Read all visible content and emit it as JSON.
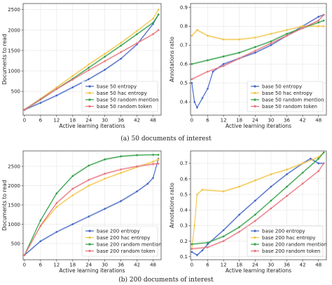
{
  "captions": [
    "(a) 50 documents of interest",
    "(b) 200 documents of interest"
  ],
  "chart_data": [
    {
      "type": "line",
      "xlabel": "Active learning iterations",
      "ylabel": "Documents to read",
      "xticks": [
        0,
        6,
        12,
        18,
        24,
        30,
        36,
        42,
        48
      ],
      "yticks": [
        500,
        1000,
        1500,
        2000,
        2500
      ],
      "xlim": [
        -0.5,
        51
      ],
      "ylim": [
        -80,
        2650
      ],
      "legend_position": "lower-right",
      "series": [
        {
          "name": "base 50 entropy",
          "color": "#4263c6",
          "points": [
            [
              0,
              50
            ],
            [
              6,
              220
            ],
            [
              12,
              400
            ],
            [
              18,
              600
            ],
            [
              24,
              800
            ],
            [
              30,
              1030
            ],
            [
              36,
              1300
            ],
            [
              42,
              1650
            ],
            [
              48,
              2150
            ],
            [
              50,
              2380
            ]
          ]
        },
        {
          "name": "base 50 hac entropy",
          "color": "#f2c444",
          "points": [
            [
              0,
              50
            ],
            [
              6,
              320
            ],
            [
              12,
              600
            ],
            [
              18,
              880
            ],
            [
              24,
              1160
            ],
            [
              30,
              1420
            ],
            [
              36,
              1690
            ],
            [
              42,
              1980
            ],
            [
              48,
              2280
            ],
            [
              50,
              2500
            ]
          ]
        },
        {
          "name": "base 50 random mention",
          "color": "#2f9e44",
          "points": [
            [
              0,
              50
            ],
            [
              6,
              300
            ],
            [
              12,
              560
            ],
            [
              18,
              810
            ],
            [
              24,
              1080
            ],
            [
              30,
              1350
            ],
            [
              36,
              1620
            ],
            [
              42,
              1900
            ],
            [
              48,
              2180
            ],
            [
              50,
              2380
            ]
          ]
        },
        {
          "name": "base 50 random token",
          "color": "#e8707a",
          "points": [
            [
              0,
              50
            ],
            [
              6,
              310
            ],
            [
              12,
              560
            ],
            [
              18,
              790
            ],
            [
              24,
              1020
            ],
            [
              30,
              1240
            ],
            [
              36,
              1460
            ],
            [
              42,
              1680
            ],
            [
              48,
              1900
            ],
            [
              50,
              2000
            ]
          ]
        }
      ]
    },
    {
      "type": "line",
      "xlabel": "Active learning iterations",
      "ylabel": "Annotations ratio",
      "xticks": [
        0,
        6,
        12,
        18,
        24,
        30,
        36,
        42,
        48
      ],
      "yticks": [
        0.4,
        0.5,
        0.6,
        0.7,
        0.8,
        0.9
      ],
      "xlim": [
        -0.5,
        51
      ],
      "ylim": [
        0.33,
        0.92
      ],
      "legend_position": "lower-right",
      "series": [
        {
          "name": "base 50 entropy",
          "color": "#4263c6",
          "points": [
            [
              0,
              0.5
            ],
            [
              1,
              0.4
            ],
            [
              2,
              0.37
            ],
            [
              4,
              0.42
            ],
            [
              6,
              0.47
            ],
            [
              8,
              0.56
            ],
            [
              12,
              0.6
            ],
            [
              18,
              0.63
            ],
            [
              24,
              0.66
            ],
            [
              30,
              0.7
            ],
            [
              36,
              0.75
            ],
            [
              42,
              0.8
            ],
            [
              48,
              0.85
            ],
            [
              50,
              0.86
            ]
          ]
        },
        {
          "name": "base 50 hac entropy",
          "color": "#f2c444",
          "points": [
            [
              0,
              0.75
            ],
            [
              2,
              0.78
            ],
            [
              6,
              0.75
            ],
            [
              12,
              0.73
            ],
            [
              18,
              0.73
            ],
            [
              24,
              0.74
            ],
            [
              30,
              0.76
            ],
            [
              36,
              0.78
            ],
            [
              42,
              0.8
            ],
            [
              48,
              0.8
            ],
            [
              50,
              0.8
            ]
          ]
        },
        {
          "name": "base 50 random mention",
          "color": "#2f9e44",
          "points": [
            [
              0,
              0.6
            ],
            [
              6,
              0.62
            ],
            [
              12,
              0.64
            ],
            [
              18,
              0.66
            ],
            [
              24,
              0.69
            ],
            [
              30,
              0.72
            ],
            [
              36,
              0.76
            ],
            [
              42,
              0.79
            ],
            [
              48,
              0.82
            ],
            [
              50,
              0.83
            ]
          ]
        },
        {
          "name": "base 50 random token",
          "color": "#e8707a",
          "points": [
            [
              0,
              0.52
            ],
            [
              6,
              0.56
            ],
            [
              12,
              0.59
            ],
            [
              18,
              0.63
            ],
            [
              24,
              0.67
            ],
            [
              30,
              0.71
            ],
            [
              36,
              0.75
            ],
            [
              42,
              0.79
            ],
            [
              48,
              0.83
            ],
            [
              50,
              0.86
            ]
          ]
        }
      ]
    },
    {
      "type": "line",
      "xlabel": "Active learning iterations",
      "ylabel": "Documents to read",
      "xticks": [
        0,
        6,
        12,
        18,
        24,
        30,
        36,
        42,
        48
      ],
      "yticks": [
        500,
        1000,
        1500,
        2000,
        2500
      ],
      "xlim": [
        -0.5,
        51
      ],
      "ylim": [
        80,
        2900
      ],
      "legend_position": "lower-right",
      "series": [
        {
          "name": "base 200 entropy",
          "color": "#4263c6",
          "points": [
            [
              0,
              200
            ],
            [
              6,
              560
            ],
            [
              12,
              800
            ],
            [
              18,
              1000
            ],
            [
              24,
              1200
            ],
            [
              30,
              1400
            ],
            [
              36,
              1600
            ],
            [
              42,
              1850
            ],
            [
              46,
              2050
            ],
            [
              48,
              2200
            ],
            [
              50,
              2700
            ]
          ]
        },
        {
          "name": "base 200 hac entropy",
          "color": "#f2c444",
          "points": [
            [
              0,
              200
            ],
            [
              6,
              950
            ],
            [
              12,
              1450
            ],
            [
              18,
              1750
            ],
            [
              24,
              2000
            ],
            [
              30,
              2180
            ],
            [
              36,
              2330
            ],
            [
              42,
              2480
            ],
            [
              48,
              2620
            ],
            [
              50,
              2680
            ]
          ]
        },
        {
          "name": "base 200 random mention",
          "color": "#2f9e44",
          "points": [
            [
              0,
              200
            ],
            [
              6,
              1100
            ],
            [
              12,
              1800
            ],
            [
              18,
              2250
            ],
            [
              24,
              2520
            ],
            [
              30,
              2680
            ],
            [
              36,
              2760
            ],
            [
              42,
              2790
            ],
            [
              48,
              2800
            ],
            [
              50,
              2800
            ]
          ]
        },
        {
          "name": "base 200 random token",
          "color": "#e8707a",
          "points": [
            [
              0,
              200
            ],
            [
              6,
              960
            ],
            [
              12,
              1550
            ],
            [
              18,
              1920
            ],
            [
              24,
              2150
            ],
            [
              30,
              2310
            ],
            [
              36,
              2420
            ],
            [
              42,
              2500
            ],
            [
              48,
              2560
            ],
            [
              50,
              2570
            ]
          ]
        }
      ]
    },
    {
      "type": "line",
      "xlabel": "Active learning iterations",
      "ylabel": "Annotations ratio",
      "xticks": [
        0,
        6,
        12,
        18,
        24,
        30,
        36,
        42,
        48
      ],
      "yticks": [
        0.1,
        0.2,
        0.3,
        0.4,
        0.5,
        0.6,
        0.7
      ],
      "xlim": [
        -0.5,
        51
      ],
      "ylim": [
        0.08,
        0.78
      ],
      "legend_position": "lower-right",
      "series": [
        {
          "name": "base 200 entropy",
          "color": "#4263c6",
          "points": [
            [
              0,
              0.13
            ],
            [
              2,
              0.11
            ],
            [
              4,
              0.14
            ],
            [
              6,
              0.18
            ],
            [
              12,
              0.27
            ],
            [
              18,
              0.37
            ],
            [
              24,
              0.46
            ],
            [
              30,
              0.55
            ],
            [
              36,
              0.63
            ],
            [
              42,
              0.7
            ],
            [
              45,
              0.73
            ],
            [
              48,
              0.7
            ],
            [
              50,
              0.7
            ]
          ]
        },
        {
          "name": "base 200 hac entropy",
          "color": "#f2c444",
          "points": [
            [
              0,
              0.15
            ],
            [
              1,
              0.3
            ],
            [
              2,
              0.5
            ],
            [
              4,
              0.53
            ],
            [
              12,
              0.52
            ],
            [
              18,
              0.55
            ],
            [
              24,
              0.59
            ],
            [
              30,
              0.63
            ],
            [
              36,
              0.66
            ],
            [
              42,
              0.7
            ],
            [
              48,
              0.74
            ],
            [
              50,
              0.77
            ]
          ]
        },
        {
          "name": "base 200 random mention",
          "color": "#2f9e44",
          "points": [
            [
              0,
              0.18
            ],
            [
              6,
              0.19
            ],
            [
              12,
              0.23
            ],
            [
              18,
              0.29
            ],
            [
              24,
              0.37
            ],
            [
              30,
              0.46
            ],
            [
              36,
              0.55
            ],
            [
              42,
              0.64
            ],
            [
              48,
              0.73
            ],
            [
              50,
              0.77
            ]
          ]
        },
        {
          "name": "base 200 random token",
          "color": "#e8707a",
          "points": [
            [
              0,
              0.15
            ],
            [
              6,
              0.16
            ],
            [
              12,
              0.2
            ],
            [
              18,
              0.26
            ],
            [
              24,
              0.33
            ],
            [
              30,
              0.41
            ],
            [
              36,
              0.49
            ],
            [
              42,
              0.57
            ],
            [
              48,
              0.65
            ],
            [
              50,
              0.7
            ]
          ]
        }
      ]
    }
  ]
}
